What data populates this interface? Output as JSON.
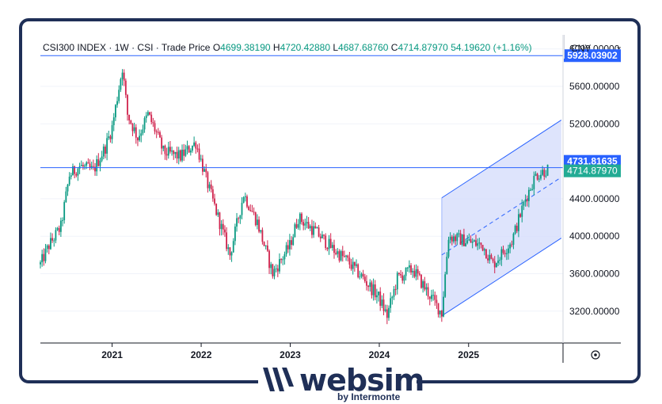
{
  "header": {
    "symbol": "CSI300 INDEX",
    "interval": "1W",
    "exchange": "CSI",
    "price_type": "Trade Price",
    "o_label": "O",
    "o_value": "4699.38190",
    "h_label": "H",
    "h_value": "4720.42880",
    "l_label": "L",
    "l_value": "4687.68760",
    "c_label": "C",
    "c_value": "4714.87970",
    "change": "54.19620 (+1.16%)"
  },
  "currency": "CNY",
  "colors": {
    "up": "#089981",
    "down": "#d0234d",
    "line": "#2962ff",
    "channel_fill": "#d6ddfb",
    "channel_edge": "#2962ff",
    "badge_blue": "#2962ff",
    "badge_green": "#22ab94",
    "frame": "#1f2f57"
  },
  "chart_data": {
    "type": "candlestick",
    "x_tick_labels": [
      "2021",
      "2022",
      "2023",
      "2024",
      "2025"
    ],
    "y_tick_labels": [
      "3200.00000",
      "3600.00000",
      "4000.00000",
      "4400.00000",
      "5200.00000",
      "5600.00000",
      "6000.00000"
    ],
    "ylim": [
      2860,
      6150
    ],
    "price_path": [
      [
        "2020-03-13",
        3700
      ],
      [
        "2020-04-17",
        3900
      ],
      [
        "2020-06-05",
        4100
      ],
      [
        "2020-07-10",
        4650
      ],
      [
        "2020-08-21",
        4750
      ],
      [
        "2020-10-16",
        4700
      ],
      [
        "2020-12-04",
        4950
      ],
      [
        "2020-12-31",
        5150
      ],
      [
        "2021-02-12",
        5800
      ],
      [
        "2021-03-05",
        5300
      ],
      [
        "2021-04-16",
        5050
      ],
      [
        "2021-05-28",
        5300
      ],
      [
        "2021-07-02",
        5100
      ],
      [
        "2021-07-30",
        4900
      ],
      [
        "2021-10-08",
        4850
      ],
      [
        "2021-12-10",
        5000
      ],
      [
        "2022-01-28",
        4550
      ],
      [
        "2022-04-29",
        3800
      ],
      [
        "2022-06-24",
        4450
      ],
      [
        "2022-08-19",
        4150
      ],
      [
        "2022-10-21",
        3600
      ],
      [
        "2022-12-30",
        3900
      ],
      [
        "2023-02-03",
        4200
      ],
      [
        "2023-04-14",
        4050
      ],
      [
        "2023-06-30",
        3850
      ],
      [
        "2023-08-18",
        3750
      ],
      [
        "2023-10-27",
        3550
      ],
      [
        "2023-12-29",
        3350
      ],
      [
        "2024-02-02",
        3150
      ],
      [
        "2024-03-15",
        3550
      ],
      [
        "2024-05-17",
        3650
      ],
      [
        "2024-07-05",
        3450
      ],
      [
        "2024-09-13",
        3180
      ],
      [
        "2024-10-11",
        4000
      ],
      [
        "2024-12-20",
        3950
      ],
      [
        "2025-02-28",
        3900
      ],
      [
        "2025-04-11",
        3700
      ],
      [
        "2025-06-27",
        3950
      ],
      [
        "2025-08-22",
        4400
      ],
      [
        "2025-10-03",
        4650
      ],
      [
        "2025-11-21",
        4715
      ]
    ],
    "horizontal_lines": [
      {
        "value": 5928.03902,
        "label": "5928.03902"
      },
      {
        "value": 4731.81635,
        "label": "4731.81635"
      }
    ],
    "last_price": {
      "value": 4714.8797,
      "label": "4714.87970"
    },
    "regression_channel": {
      "start": "2024-09-13",
      "end": "2026-01-16",
      "mid_start": 3800,
      "mid_end": 4630,
      "upper_offset": 610,
      "lower_offset": 650
    }
  },
  "watermark": {
    "brand": "websim",
    "tagline": "by Intermonte"
  }
}
